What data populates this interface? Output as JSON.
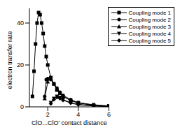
{
  "chart_data": {
    "type": "line",
    "x_label": "ClO...ClO' contact distance",
    "y_label": "electron transfer rate",
    "xlim": [
      0.8,
      6
    ],
    "xticks": [
      2,
      4,
      6
    ],
    "ylim": [
      0,
      47
    ],
    "yticks": [
      0,
      20,
      40
    ],
    "legend": "top-right",
    "series": [
      {
        "name": "Coupling mode 1",
        "color": "#000000",
        "marker": "square",
        "x": [
          1.0,
          1.1,
          1.2,
          1.3,
          1.4,
          1.5,
          1.6,
          1.7,
          1.8,
          1.9,
          2.0,
          2.2,
          2.4,
          2.6,
          2.8,
          3.0,
          3.5,
          4.0,
          5.0,
          6.0
        ],
        "values": [
          5,
          17,
          30,
          40,
          45,
          44,
          40,
          35,
          29,
          24,
          20,
          14,
          11,
          8,
          6.5,
          5,
          3,
          2,
          1,
          0.5
        ]
      },
      {
        "name": "Coupling mode 2",
        "color": "#000000",
        "marker": "circle",
        "x": [
          1.8,
          1.9,
          2.0,
          2.2,
          2.4,
          2.6,
          2.8,
          3.0,
          3.5,
          4.0,
          5.0,
          6.0
        ],
        "values": [
          5,
          13,
          13.5,
          13,
          11,
          9,
          7,
          5.5,
          3.5,
          2,
          0.8,
          0.3
        ]
      },
      {
        "name": "Coupling mode 3",
        "color": "#000000",
        "marker": "triangle-up",
        "x": [
          1.8,
          2.0,
          2.2,
          2.4,
          2.6,
          2.8,
          3.0,
          3.5,
          4.0,
          5.0,
          6.0
        ],
        "values": [
          4,
          12,
          14,
          11,
          8.5,
          6.5,
          5,
          3,
          1.8,
          0.7,
          0.3
        ]
      },
      {
        "name": "Coupling mode 4",
        "color": "#000000",
        "marker": "triangle-down",
        "x": [
          2.2,
          2.4,
          2.6,
          2.8,
          3.0,
          3.5,
          4.0,
          5.0,
          6.0
        ],
        "values": [
          2,
          4,
          5,
          4.5,
          3.5,
          2,
          1.2,
          0.5,
          0.2
        ]
      },
      {
        "name": "Coupling mode 5",
        "color": "#000000",
        "marker": "diamond",
        "x": [
          2.2,
          2.4,
          2.6,
          2.8,
          3.0,
          3.5,
          4.0,
          5.0,
          6.0
        ],
        "values": [
          1.5,
          3.5,
          4.5,
          4,
          3.2,
          1.8,
          1,
          0.4,
          0.1
        ]
      }
    ]
  }
}
